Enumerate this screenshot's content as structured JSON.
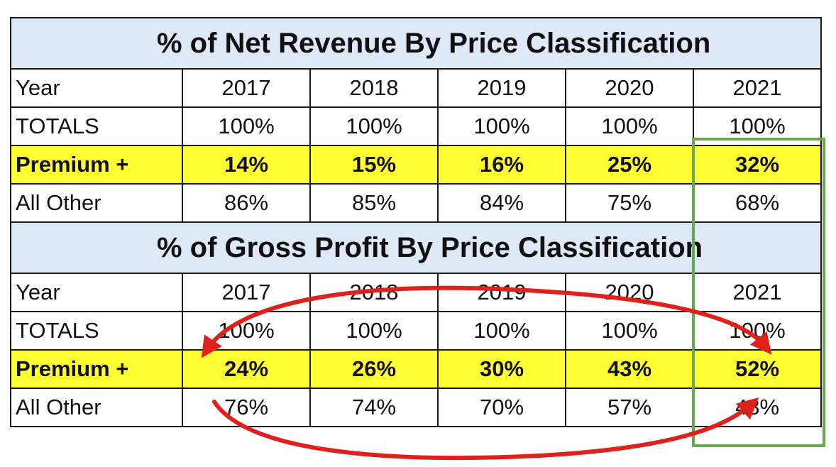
{
  "colors": {
    "title_bg": "#dfe8f6",
    "highlight_yellow": "#ffff33",
    "box_green": "#6aa84f",
    "arrow_red": "#e0201b"
  },
  "revenue_table": {
    "title": "% of Net Revenue By Price Classification",
    "year_label": "Year",
    "years": [
      "2017",
      "2018",
      "2019",
      "2020",
      "2021"
    ],
    "rows": [
      {
        "label": "TOTALS",
        "highlight": false,
        "values": [
          "100%",
          "100%",
          "100%",
          "100%",
          "100%"
        ]
      },
      {
        "label": "Premium +",
        "highlight": true,
        "values": [
          "14%",
          "15%",
          "16%",
          "25%",
          "32%"
        ]
      },
      {
        "label": "All Other",
        "highlight": false,
        "values": [
          "86%",
          "85%",
          "84%",
          "75%",
          "68%"
        ]
      }
    ]
  },
  "profit_table": {
    "title": "% of Gross Profit By Price Classification",
    "year_label": "Year",
    "years": [
      "2017",
      "2018",
      "2019",
      "2020",
      "2021"
    ],
    "rows": [
      {
        "label": "TOTALS",
        "highlight": false,
        "values": [
          "100%",
          "100%",
          "100%",
          "100%",
          "100%"
        ]
      },
      {
        "label": "Premium +",
        "highlight": true,
        "values": [
          "24%",
          "26%",
          "30%",
          "43%",
          "52%"
        ]
      },
      {
        "label": "All Other",
        "highlight": false,
        "values": [
          "76%",
          "74%",
          "70%",
          "57%",
          "48%"
        ]
      }
    ]
  },
  "annotations": {
    "box": "green-highlight-box-2021-column",
    "arrows": [
      "red-curved-arrow-upper",
      "red-curved-arrow-lower"
    ]
  }
}
